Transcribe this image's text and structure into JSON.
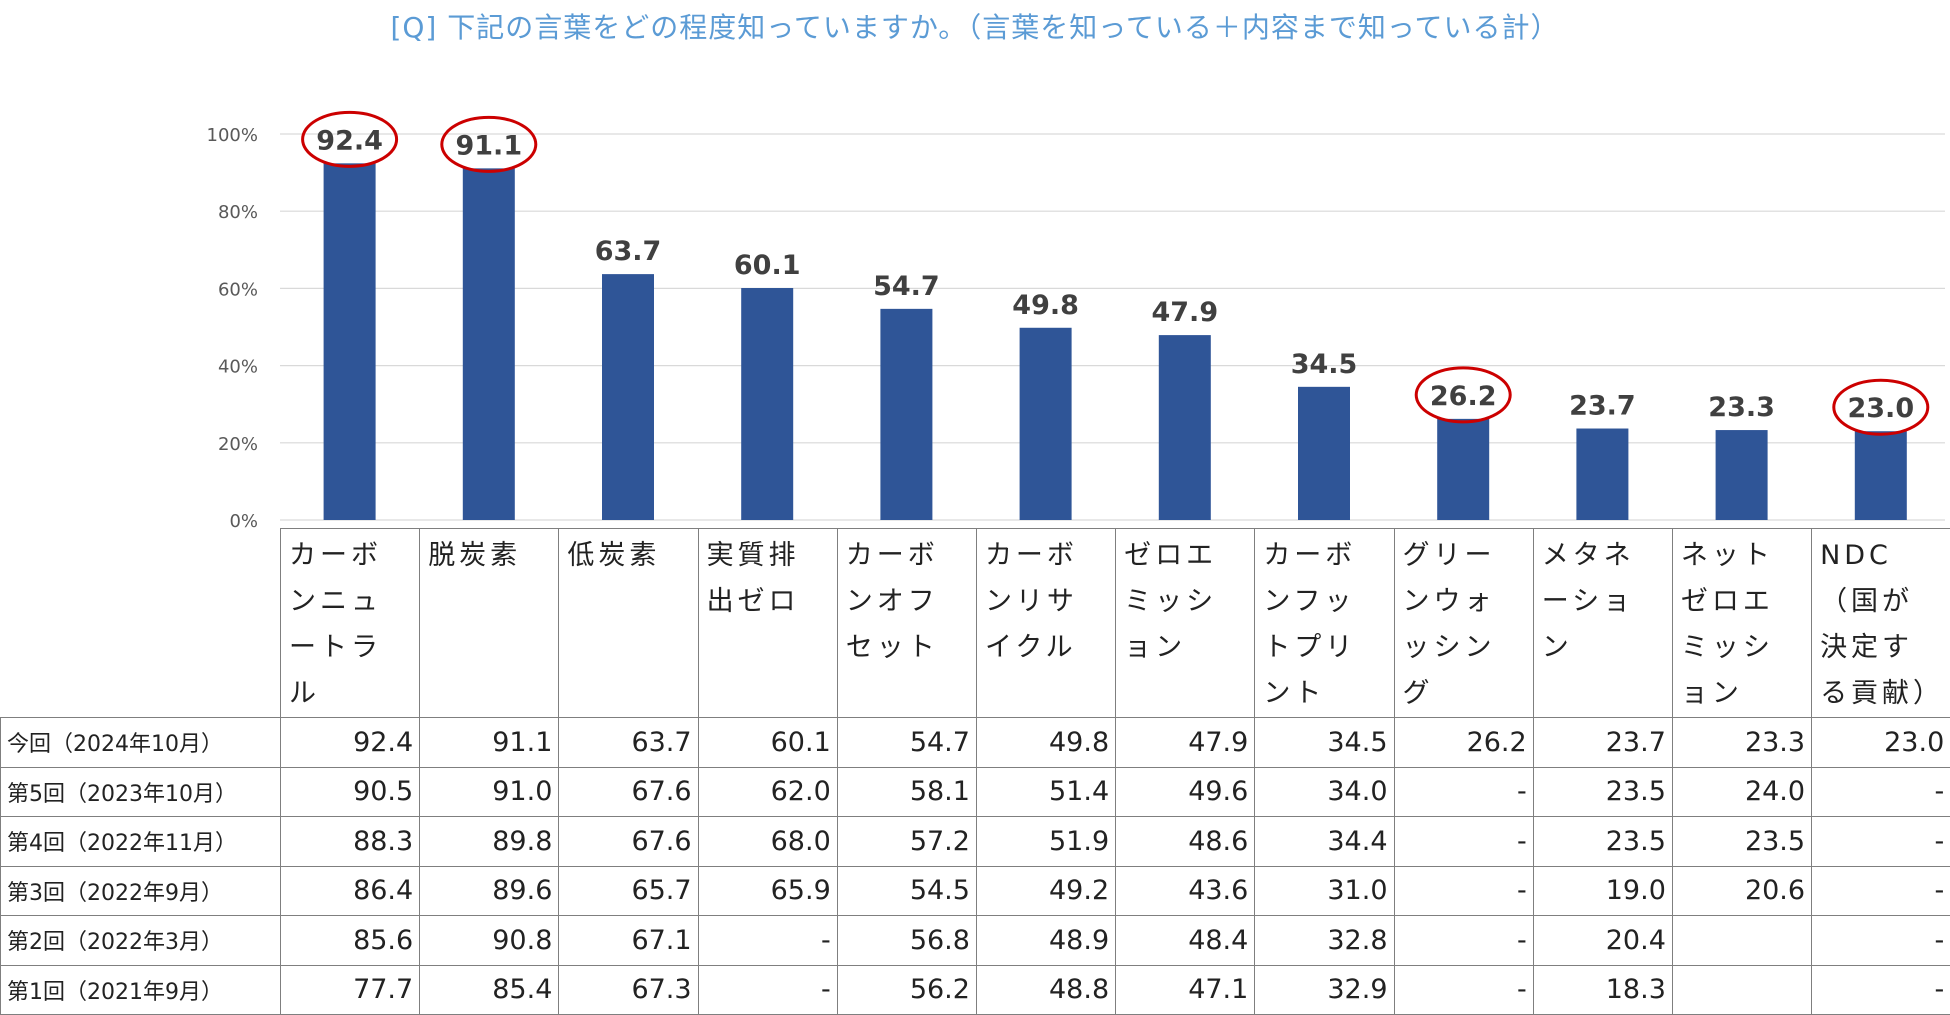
{
  "title": "[Q] 下記の言葉をどの程度知っていますか。（言葉を知っている＋内容まで知っている計）",
  "chart_data": {
    "type": "bar",
    "categories": [
      "カーボンニュートラル",
      "脱炭素",
      "低炭素",
      "実質排出ゼロ",
      "カーボンオフセット",
      "カーボンリサイクル",
      "ゼロエミッション",
      "カーボンフットプリント",
      "グリーンウォッシング",
      "メタネーション",
      "ネットゼロエミッション",
      "NDC（国が決定する貢献）"
    ],
    "values": [
      92.4,
      91.1,
      63.7,
      60.1,
      54.7,
      49.8,
      47.9,
      34.5,
      26.2,
      23.7,
      23.3,
      23.0
    ],
    "value_labels": [
      "92.4",
      "91.1",
      "63.7",
      "60.1",
      "54.7",
      "49.8",
      "47.9",
      "34.5",
      "26.2",
      "23.7",
      "23.3",
      "23.0"
    ],
    "yticks": [
      "0%",
      "20%",
      "40%",
      "60%",
      "80%",
      "100%"
    ],
    "ylim": [
      0,
      100
    ],
    "grid": true,
    "highlighted_categories": [
      0,
      1,
      8,
      11
    ],
    "bar_color": "#2f5597",
    "highlight_color": "#cc0000"
  },
  "table": {
    "rows": [
      {
        "label": "今回（2024年10月）",
        "values": [
          "92.4",
          "91.1",
          "63.7",
          "60.1",
          "54.7",
          "49.8",
          "47.9",
          "34.5",
          "26.2",
          "23.7",
          "23.3",
          "23.0"
        ]
      },
      {
        "label": "第5回（2023年10月）",
        "values": [
          "90.5",
          "91.0",
          "67.6",
          "62.0",
          "58.1",
          "51.4",
          "49.6",
          "34.0",
          "-",
          "23.5",
          "24.0",
          "-"
        ]
      },
      {
        "label": "第4回（2022年11月）",
        "values": [
          "88.3",
          "89.8",
          "67.6",
          "68.0",
          "57.2",
          "51.9",
          "48.6",
          "34.4",
          "-",
          "23.5",
          "23.5",
          "-"
        ]
      },
      {
        "label": "第3回（2022年9月）",
        "values": [
          "86.4",
          "89.6",
          "65.7",
          "65.9",
          "54.5",
          "49.2",
          "43.6",
          "31.0",
          "-",
          "19.0",
          "20.6",
          "-"
        ]
      },
      {
        "label": "第2回（2022年3月）",
        "values": [
          "85.6",
          "90.8",
          "67.1",
          "-",
          "56.8",
          "48.9",
          "48.4",
          "32.8",
          "-",
          "20.4",
          "",
          "-"
        ]
      },
      {
        "label": "第1回（2021年9月）",
        "values": [
          "77.7",
          "85.4",
          "67.3",
          "-",
          "56.2",
          "48.8",
          "47.1",
          "32.9",
          "-",
          "18.3",
          "",
          "-"
        ]
      }
    ]
  }
}
